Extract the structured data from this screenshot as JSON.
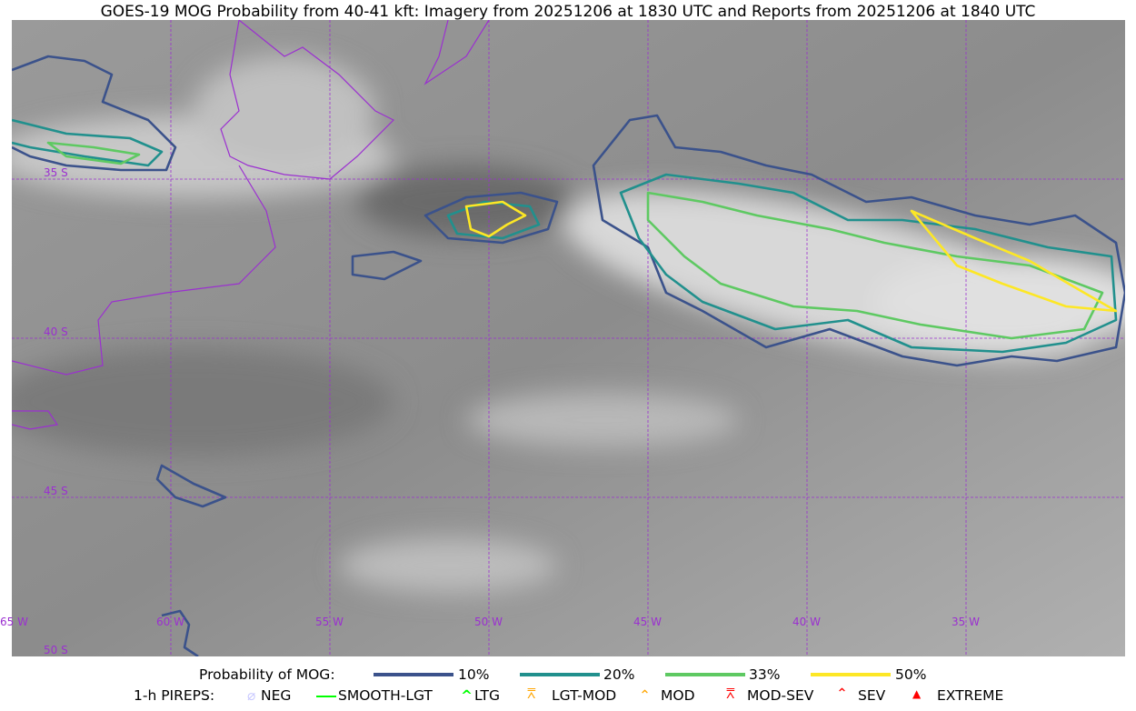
{
  "title": "GOES-19 MOG Probability from 40-41 kft: Imagery from 20251206 at 1830 UTC and Reports from 20251206 at 1840 UTC",
  "map": {
    "longitude_labels": [
      "65 W",
      "60 W",
      "55 W",
      "50 W",
      "45 W",
      "40 W",
      "35 W"
    ],
    "latitude_labels": [
      "35 S",
      "40 S",
      "45 S",
      "50 S"
    ],
    "grid_color": "#9b30d0",
    "coastline_color": "#9b30d0"
  },
  "legend": {
    "probability_label": "Probability of MOG:",
    "probability_levels": [
      {
        "label": "10%",
        "color": "#3b528b"
      },
      {
        "label": "20%",
        "color": "#21908d"
      },
      {
        "label": "33%",
        "color": "#5ec962"
      },
      {
        "label": "50%",
        "color": "#fde725"
      }
    ],
    "pireps_label": "1-h PIREPS:",
    "pireps": [
      {
        "label": "NEG",
        "color": "#c8c8ff",
        "icon": "neg-circle-icon"
      },
      {
        "label": "SMOOTH-LGT",
        "color": "#00ff00",
        "icon": "line-icon"
      },
      {
        "label": "LTG",
        "color": "#00ff00",
        "icon": "caret-icon"
      },
      {
        "label": "LGT-MOD",
        "color": "#ffa500",
        "icon": "caret-bar-icon"
      },
      {
        "label": "MOD",
        "color": "#ffa500",
        "icon": "caret-icon"
      },
      {
        "label": "MOD-SEV",
        "color": "#ff0000",
        "icon": "double-caret-bar-icon"
      },
      {
        "label": "SEV",
        "color": "#ff0000",
        "icon": "double-caret-icon"
      },
      {
        "label": "EXTREME",
        "color": "#ff0000",
        "icon": "filled-triangle-icon"
      }
    ]
  }
}
